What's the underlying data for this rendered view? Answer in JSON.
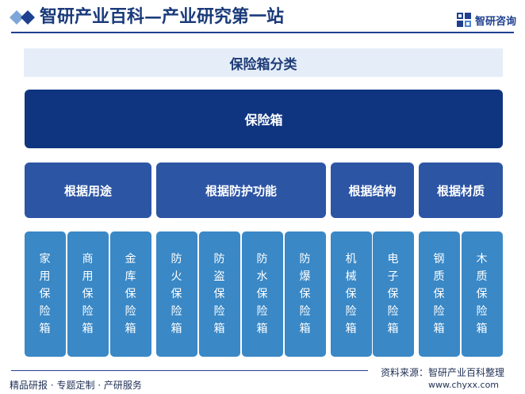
{
  "header": {
    "title": "智研产业百科—产业研究第一站",
    "logo_text": "智研咨询",
    "logo_icon": "chyxx-logo-icon"
  },
  "diagram": {
    "title": "保险箱分类",
    "root": "保险箱",
    "categories": [
      {
        "label": "根据用途",
        "items": [
          "家用保险箱",
          "商用保险箱",
          "金库保险箱"
        ]
      },
      {
        "label": "根据防护功能",
        "items": [
          "防火保险箱",
          "防盗保险箱",
          "防水保险箱",
          "防爆保险箱"
        ]
      },
      {
        "label": "根据结构",
        "items": [
          "机械保险箱",
          "电子保险箱"
        ]
      },
      {
        "label": "根据材质",
        "items": [
          "钢质保险箱",
          "木质保险箱"
        ]
      }
    ]
  },
  "footer": {
    "source": "资料来源：智研产业百科整理",
    "services": "精品研报 · 专题定制 · 产研服务",
    "website": "www.chyxx.com"
  },
  "colors": {
    "brand": "#1f3f8f",
    "root_fill": "#0f3580",
    "category_fill": "#2c55a4",
    "leaf_fill": "#3a88c6",
    "title_strip": "#e5eef8"
  }
}
